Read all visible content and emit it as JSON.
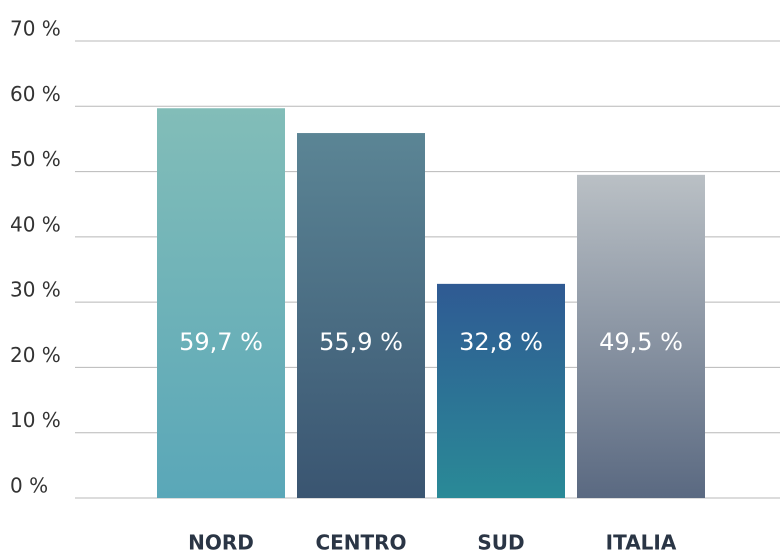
{
  "chart_data": {
    "type": "bar",
    "categories": [
      "NORD",
      "CENTRO",
      "SUD",
      "ITALIA"
    ],
    "values": [
      59.7,
      55.9,
      32.8,
      49.5
    ],
    "value_labels": [
      "59,7 %",
      "55,9 %",
      "32,8 %",
      "49,5 %"
    ],
    "colors": [
      [
        "#82bdb8",
        "#5aa7b8"
      ],
      [
        "#5b8595",
        "#3a5571"
      ],
      [
        "#2f5a93",
        "#2a8a97"
      ],
      [
        "#bac0c5",
        "#5a6981"
      ]
    ],
    "ylim": [
      0,
      70
    ],
    "yticks": [
      {
        "value": 0,
        "label": "0 %"
      },
      {
        "value": 10,
        "label": "10 %"
      },
      {
        "value": 20,
        "label": "20 %"
      },
      {
        "value": 30,
        "label": "30 %"
      },
      {
        "value": 40,
        "label": "40 %"
      },
      {
        "value": 50,
        "label": "50 %"
      },
      {
        "value": 60,
        "label": "60 %"
      },
      {
        "value": 70,
        "label": "70 %"
      }
    ],
    "grid": true
  }
}
